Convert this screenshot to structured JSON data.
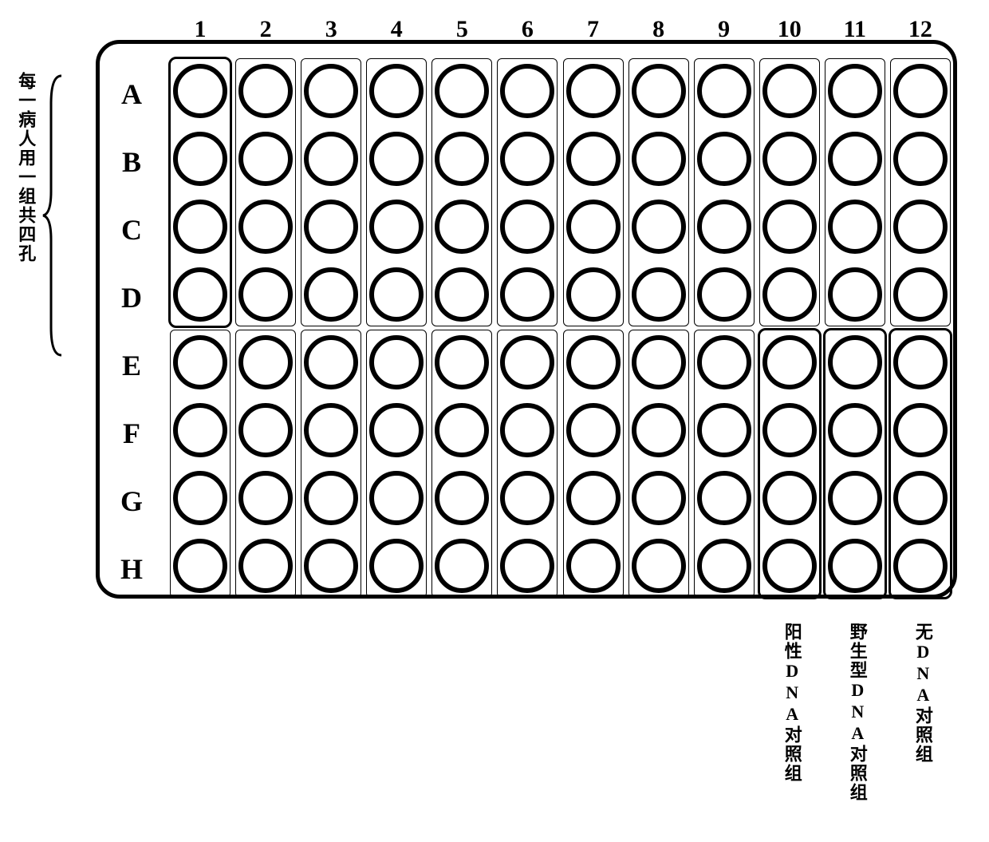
{
  "layout": {
    "rows": [
      "A",
      "B",
      "C",
      "D",
      "E",
      "F",
      "G",
      "H"
    ],
    "cols": [
      "1",
      "2",
      "3",
      "4",
      "5",
      "6",
      "7",
      "8",
      "9",
      "10",
      "11",
      "12"
    ],
    "well_stroke_color": "#000000",
    "well_stroke_width": 6,
    "well_diameter": 68,
    "plate_border_width": 5,
    "plate_border_radius": 30,
    "thin_box_border_width": 1,
    "bold_box_border_width": 3,
    "bold_box_border_radius": 10,
    "bold_group_boxes": [
      {
        "col": 1,
        "row_start": 1,
        "row_end": 4,
        "half": "top"
      },
      {
        "col": 10,
        "row_start": 5,
        "row_end": 8,
        "half": "bottom"
      },
      {
        "col": 11,
        "row_start": 5,
        "row_end": 8,
        "half": "bottom"
      },
      {
        "col": 12,
        "row_start": 5,
        "row_end": 8,
        "half": "bottom"
      }
    ]
  },
  "labels": {
    "side": "每一病人用一组共四孔",
    "bottom": [
      {
        "col": 10,
        "text": "阳性DNA对照组"
      },
      {
        "col": 11,
        "text": "野生型DNA对照组"
      },
      {
        "col": 12,
        "text": "无DNA对照组"
      }
    ]
  },
  "typography": {
    "header_font_family": "Times New Roman, serif",
    "header_font_size": 30,
    "row_label_font_size": 36,
    "cjk_font_family": "SimSun, 宋体, serif",
    "cjk_font_size": 22,
    "font_weight": "bold"
  },
  "colors": {
    "background": "#ffffff",
    "stroke": "#000000"
  }
}
